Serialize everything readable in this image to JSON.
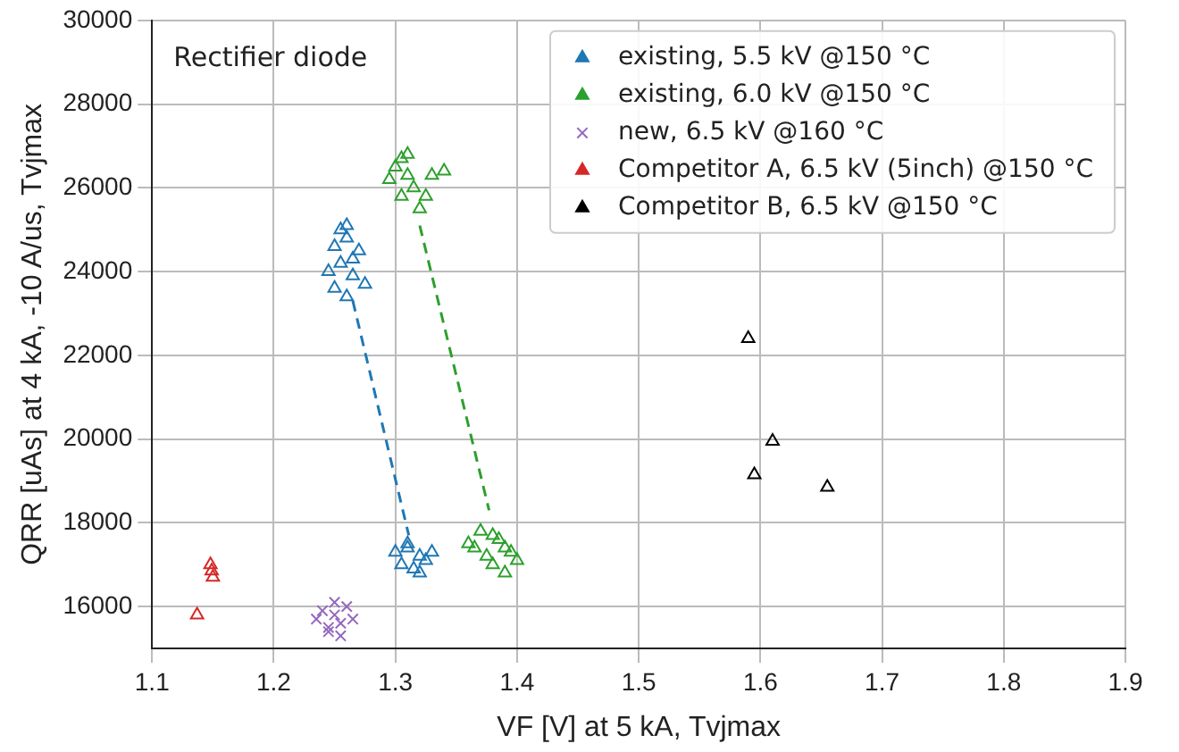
{
  "chart_data": {
    "type": "scatter",
    "xlabel": "VF [V] at 5 kA, Tvjmax",
    "ylabel": "QRR [uAs] at 4 kA, -10 A/us, Tvjmax",
    "xlim": [
      1.1,
      1.9
    ],
    "ylim": [
      15000,
      30000
    ],
    "xticks": [
      1.1,
      1.2,
      1.3,
      1.4,
      1.5,
      1.6,
      1.7,
      1.8,
      1.9
    ],
    "yticks": [
      16000,
      18000,
      20000,
      22000,
      24000,
      26000,
      28000,
      30000
    ],
    "grid": true,
    "legend": "top right",
    "annotations": [
      "Rectifier diode"
    ],
    "series": [
      {
        "name": "existing, 5.5 kV @150 °C",
        "color": "#1f77b4",
        "marker": "triangle",
        "x": [
          1.245,
          1.25,
          1.255,
          1.26,
          1.265,
          1.27,
          1.25,
          1.26,
          1.265,
          1.255,
          1.26,
          1.275,
          1.3,
          1.305,
          1.31,
          1.315,
          1.32,
          1.325,
          1.33,
          1.31,
          1.32
        ],
        "values": [
          24000,
          24600,
          25000,
          24800,
          24300,
          24500,
          23600,
          23400,
          23900,
          24200,
          25100,
          23700,
          17300,
          17000,
          17500,
          16900,
          17200,
          17100,
          17300,
          17400,
          16800
        ]
      },
      {
        "name": "existing, 6.0 kV @150 °C",
        "color": "#2ca02c",
        "marker": "triangle",
        "x": [
          1.295,
          1.3,
          1.305,
          1.31,
          1.315,
          1.32,
          1.325,
          1.31,
          1.305,
          1.34,
          1.33,
          1.36,
          1.365,
          1.37,
          1.375,
          1.38,
          1.385,
          1.39,
          1.395,
          1.4,
          1.38,
          1.39
        ],
        "values": [
          26200,
          26500,
          25800,
          26800,
          26000,
          25500,
          25800,
          26300,
          26700,
          26400,
          26300,
          17500,
          17400,
          17800,
          17200,
          17000,
          17600,
          16800,
          17300,
          17100,
          17700,
          17400
        ]
      },
      {
        "name": "new, 6.5 kV @160 °C",
        "color": "#9467bd",
        "marker": "cross",
        "x": [
          1.235,
          1.24,
          1.245,
          1.25,
          1.255,
          1.26,
          1.265,
          1.25,
          1.245,
          1.255
        ],
        "values": [
          15700,
          15900,
          15500,
          15800,
          15300,
          16000,
          15700,
          16100,
          15400,
          15600
        ]
      },
      {
        "name": "Competitor A, 6.5 kV (5inch) @150 °C",
        "color": "#d62728",
        "marker": "triangle",
        "x": [
          1.137,
          1.148,
          1.149,
          1.15
        ],
        "values": [
          15800,
          17000,
          16850,
          16700
        ]
      },
      {
        "name": "Competitor B, 6.5 kV @150 °C",
        "color": "#000000",
        "marker": "triangle",
        "x": [
          1.59,
          1.61,
          1.595,
          1.655
        ],
        "values": [
          22400,
          19950,
          19150,
          18850
        ]
      },
      {
        "type": "line",
        "color": "#1f77b4",
        "line_style": "dashed",
        "marker": "none",
        "x": [
          1.265,
          1.311
        ],
        "values": [
          23300,
          17700
        ]
      },
      {
        "type": "line",
        "color": "#2ca02c",
        "line_style": "dashed",
        "marker": "none",
        "x": [
          1.32,
          1.377
        ],
        "values": [
          25100,
          18300
        ]
      }
    ]
  }
}
